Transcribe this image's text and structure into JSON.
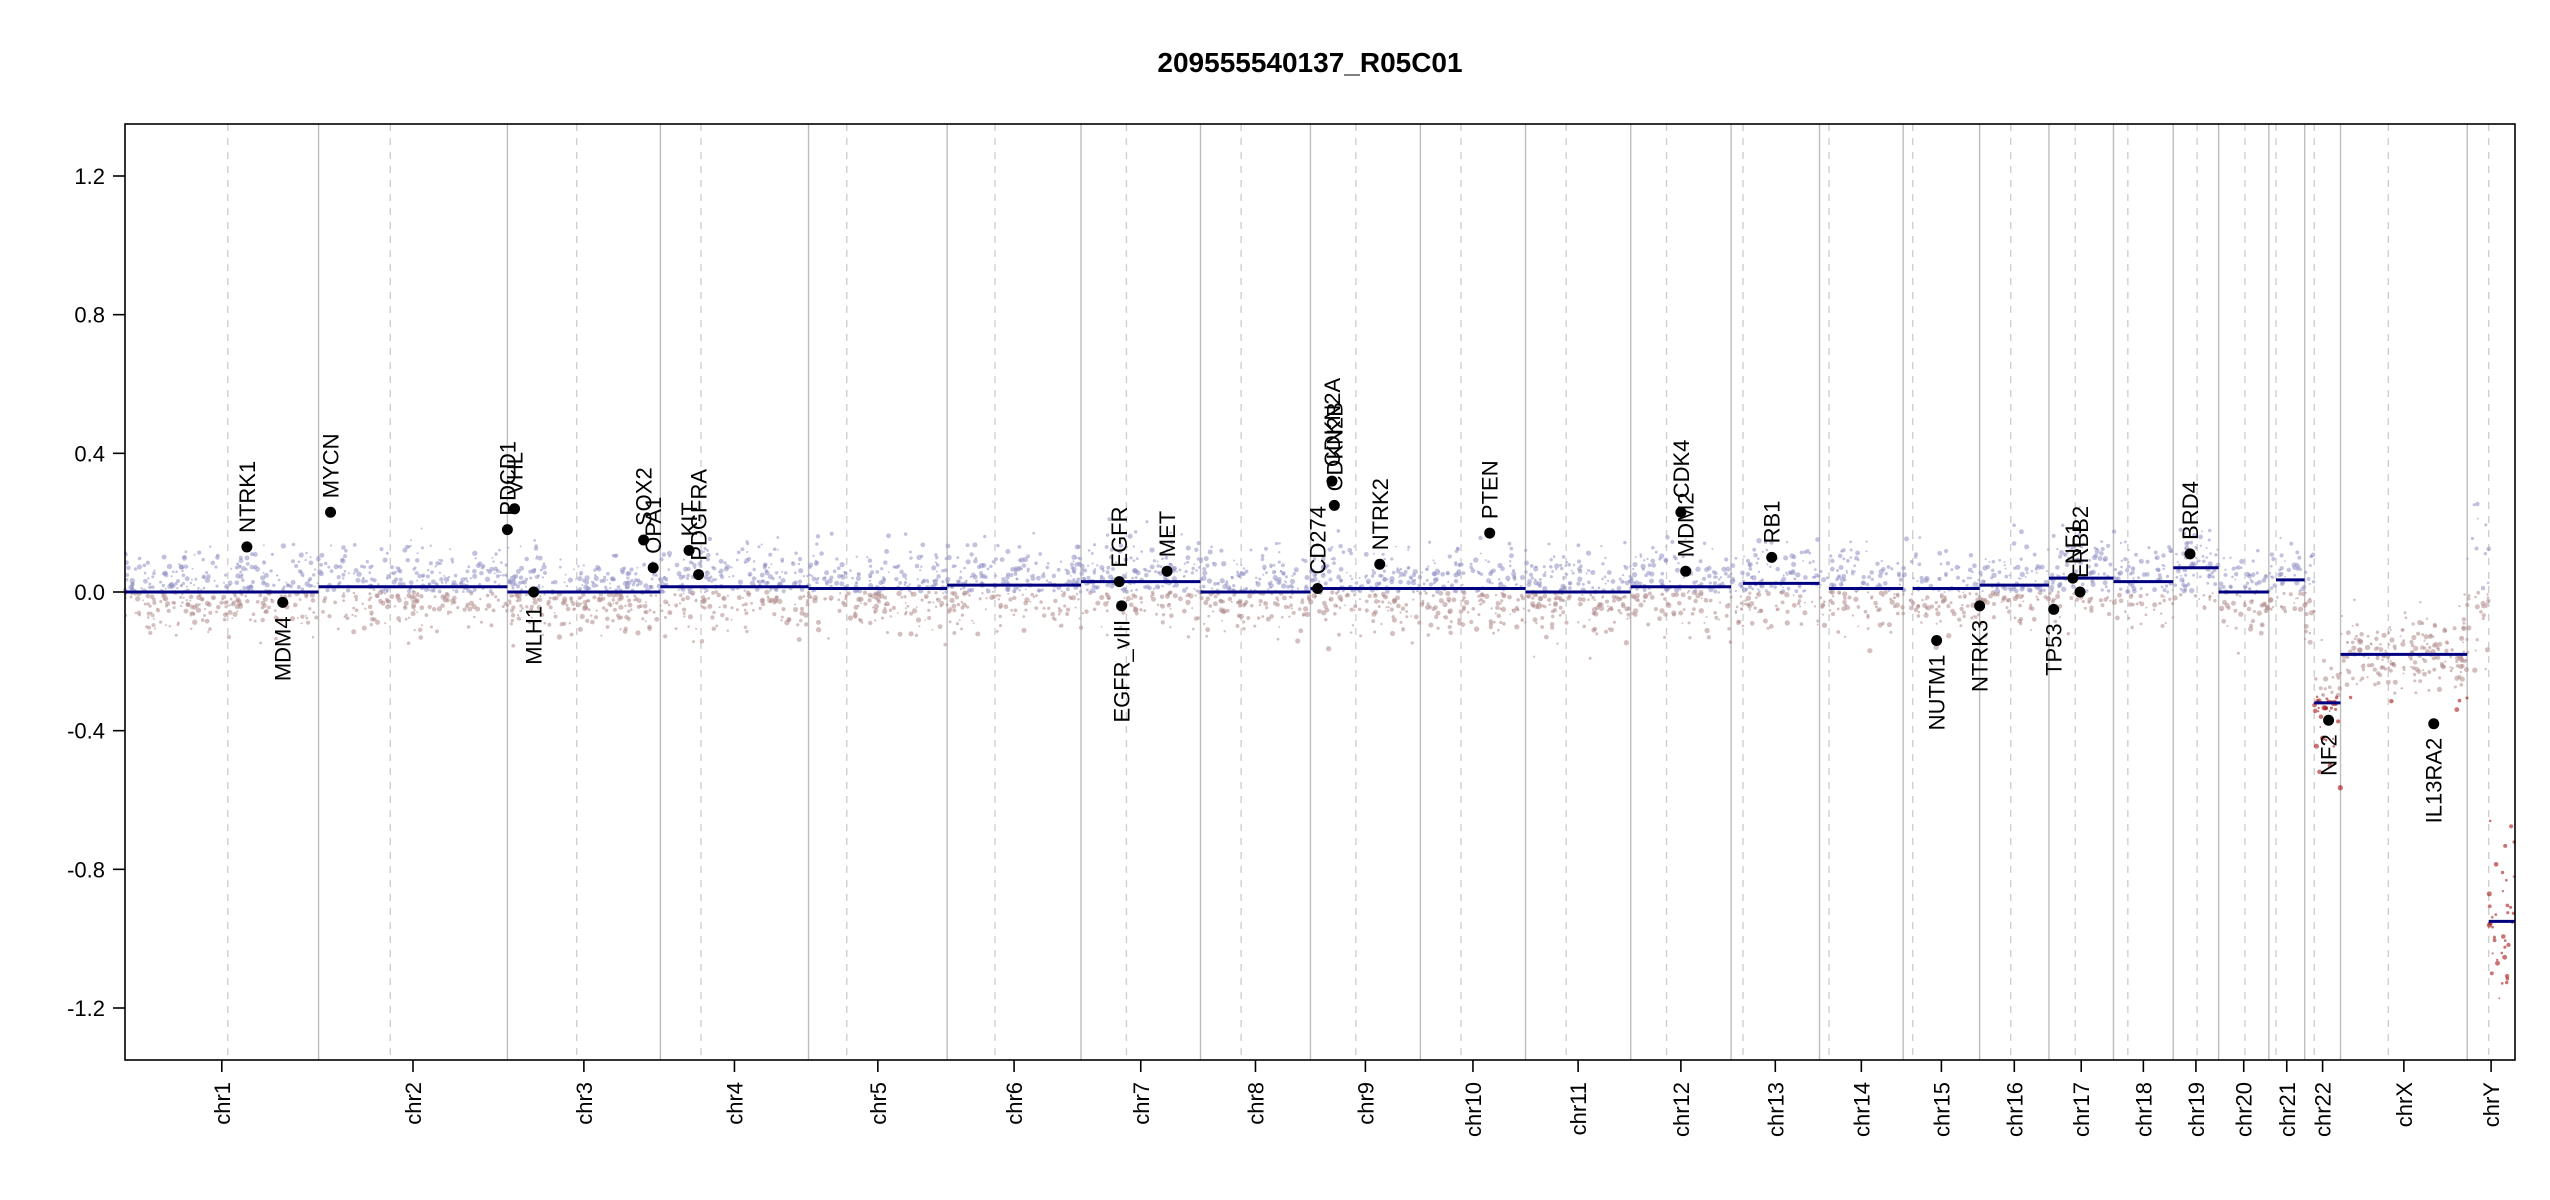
{
  "chart_data": {
    "type": "scatter",
    "title": "209555540137_R05C01",
    "xlabel": "",
    "ylabel": "",
    "ylim": [
      -1.35,
      1.35
    ],
    "y_ticks": [
      -1.2,
      -0.8,
      -0.4,
      0.0,
      0.4,
      0.8,
      1.2
    ],
    "y_tick_labels": [
      "-1.2",
      "-0.8",
      "-0.4",
      "0.0",
      "0.4",
      "0.8",
      "1.2"
    ],
    "grid": false,
    "legend": "none",
    "colors": {
      "segment": "#000080",
      "gain_points": "#8f8fc4",
      "loss_points": "#b08a8a",
      "strong_loss_points": "#9e0000",
      "gene_points": "#000000",
      "chrom_boundary": "#bdbdbd",
      "centromere": "#cfcfcf"
    },
    "chromosomes": [
      {
        "name": "chr1",
        "start": 0.0,
        "end": 0.081,
        "centromere": 0.043
      },
      {
        "name": "chr2",
        "start": 0.081,
        "end": 0.16,
        "centromere": 0.111
      },
      {
        "name": "chr3",
        "start": 0.16,
        "end": 0.224,
        "centromere": 0.189
      },
      {
        "name": "chr4",
        "start": 0.224,
        "end": 0.286,
        "centromere": 0.241
      },
      {
        "name": "chr5",
        "start": 0.286,
        "end": 0.344,
        "centromere": 0.302
      },
      {
        "name": "chr6",
        "start": 0.344,
        "end": 0.4,
        "centromere": 0.364
      },
      {
        "name": "chr7",
        "start": 0.4,
        "end": 0.45,
        "centromere": 0.419
      },
      {
        "name": "chr8",
        "start": 0.45,
        "end": 0.496,
        "centromere": 0.467
      },
      {
        "name": "chr9",
        "start": 0.496,
        "end": 0.542,
        "centromere": 0.515
      },
      {
        "name": "chr10",
        "start": 0.542,
        "end": 0.586,
        "centromere": 0.559
      },
      {
        "name": "chr11",
        "start": 0.586,
        "end": 0.63,
        "centromere": 0.603
      },
      {
        "name": "chr12",
        "start": 0.63,
        "end": 0.672,
        "centromere": 0.645
      },
      {
        "name": "chr13",
        "start": 0.672,
        "end": 0.709,
        "centromere": 0.677
      },
      {
        "name": "chr14",
        "start": 0.709,
        "end": 0.744,
        "centromere": 0.713
      },
      {
        "name": "chr15",
        "start": 0.744,
        "end": 0.776,
        "centromere": 0.748
      },
      {
        "name": "chr16",
        "start": 0.776,
        "end": 0.805,
        "centromere": 0.789
      },
      {
        "name": "chr17",
        "start": 0.805,
        "end": 0.832,
        "centromere": 0.816
      },
      {
        "name": "chr18",
        "start": 0.832,
        "end": 0.857,
        "centromere": 0.838
      },
      {
        "name": "chr19",
        "start": 0.857,
        "end": 0.876,
        "centromere": 0.867
      },
      {
        "name": "chr20",
        "start": 0.876,
        "end": 0.897,
        "centromere": 0.887
      },
      {
        "name": "chr21",
        "start": 0.897,
        "end": 0.912,
        "centromere": 0.9
      },
      {
        "name": "chr22",
        "start": 0.912,
        "end": 0.927,
        "centromere": 0.916
      },
      {
        "name": "chrX",
        "start": 0.927,
        "end": 0.98,
        "centromere": 0.947
      },
      {
        "name": "chrY",
        "start": 0.98,
        "end": 1.0,
        "centromere": 0.989
      }
    ],
    "segments": [
      {
        "x0": 0.0,
        "x1": 0.081,
        "y": 0.0
      },
      {
        "x0": 0.081,
        "x1": 0.16,
        "y": 0.015
      },
      {
        "x0": 0.16,
        "x1": 0.224,
        "y": 0.0
      },
      {
        "x0": 0.224,
        "x1": 0.286,
        "y": 0.015
      },
      {
        "x0": 0.286,
        "x1": 0.344,
        "y": 0.01
      },
      {
        "x0": 0.344,
        "x1": 0.4,
        "y": 0.02
      },
      {
        "x0": 0.4,
        "x1": 0.45,
        "y": 0.03
      },
      {
        "x0": 0.45,
        "x1": 0.496,
        "y": 0.0
      },
      {
        "x0": 0.496,
        "x1": 0.542,
        "y": 0.01
      },
      {
        "x0": 0.542,
        "x1": 0.586,
        "y": 0.01
      },
      {
        "x0": 0.586,
        "x1": 0.63,
        "y": 0.0
      },
      {
        "x0": 0.63,
        "x1": 0.672,
        "y": 0.015
      },
      {
        "x0": 0.677,
        "x1": 0.709,
        "y": 0.025
      },
      {
        "x0": 0.713,
        "x1": 0.744,
        "y": 0.01
      },
      {
        "x0": 0.748,
        "x1": 0.776,
        "y": 0.01
      },
      {
        "x0": 0.776,
        "x1": 0.805,
        "y": 0.02
      },
      {
        "x0": 0.805,
        "x1": 0.832,
        "y": 0.04
      },
      {
        "x0": 0.832,
        "x1": 0.857,
        "y": 0.03
      },
      {
        "x0": 0.857,
        "x1": 0.876,
        "y": 0.07
      },
      {
        "x0": 0.876,
        "x1": 0.897,
        "y": 0.0
      },
      {
        "x0": 0.9,
        "x1": 0.912,
        "y": 0.035
      },
      {
        "x0": 0.916,
        "x1": 0.927,
        "y": -0.32
      },
      {
        "x0": 0.927,
        "x1": 0.98,
        "y": -0.18
      },
      {
        "x0": 0.989,
        "x1": 1.0,
        "y": -0.95
      }
    ],
    "genes": [
      {
        "name": "NTRK1",
        "x": 0.051,
        "y": 0.13,
        "side": "above"
      },
      {
        "name": "MDM4",
        "x": 0.066,
        "y": -0.03,
        "side": "below"
      },
      {
        "name": "MYCN",
        "x": 0.086,
        "y": 0.23,
        "side": "above"
      },
      {
        "name": "PDCD1",
        "x": 0.16,
        "y": 0.18,
        "side": "above"
      },
      {
        "name": "VHL",
        "x": 0.163,
        "y": 0.24,
        "side": "above"
      },
      {
        "name": "MLH1",
        "x": 0.171,
        "y": 0.0,
        "side": "below"
      },
      {
        "name": "SOX2",
        "x": 0.217,
        "y": 0.15,
        "side": "above"
      },
      {
        "name": "OPA1",
        "x": 0.221,
        "y": 0.07,
        "side": "above"
      },
      {
        "name": "KIT",
        "x": 0.236,
        "y": 0.12,
        "side": "above"
      },
      {
        "name": "PDGFRA",
        "x": 0.24,
        "y": 0.05,
        "side": "above"
      },
      {
        "name": "EGFR",
        "x": 0.416,
        "y": 0.03,
        "side": "above"
      },
      {
        "name": "EGFR_vIII",
        "x": 0.417,
        "y": -0.04,
        "side": "below"
      },
      {
        "name": "MET",
        "x": 0.436,
        "y": 0.06,
        "side": "above"
      },
      {
        "name": "CD274",
        "x": 0.499,
        "y": 0.01,
        "side": "above"
      },
      {
        "name": "CDKN2A",
        "x": 0.505,
        "y": 0.32,
        "side": "above"
      },
      {
        "name": "CDKN2B",
        "x": 0.506,
        "y": 0.25,
        "side": "above"
      },
      {
        "name": "NTRK2",
        "x": 0.525,
        "y": 0.08,
        "side": "above"
      },
      {
        "name": "PTEN",
        "x": 0.571,
        "y": 0.17,
        "side": "above"
      },
      {
        "name": "CDK4",
        "x": 0.651,
        "y": 0.23,
        "side": "above"
      },
      {
        "name": "MDM2",
        "x": 0.653,
        "y": 0.06,
        "side": "above"
      },
      {
        "name": "RB1",
        "x": 0.689,
        "y": 0.1,
        "side": "above"
      },
      {
        "name": "NUTM1",
        "x": 0.758,
        "y": -0.14,
        "side": "below"
      },
      {
        "name": "NTRK3",
        "x": 0.776,
        "y": -0.04,
        "side": "below"
      },
      {
        "name": "TP53",
        "x": 0.807,
        "y": -0.05,
        "side": "below"
      },
      {
        "name": "NF1",
        "x": 0.815,
        "y": 0.04,
        "side": "above"
      },
      {
        "name": "ERBB2",
        "x": 0.818,
        "y": 0.0,
        "side": "above"
      },
      {
        "name": "BRD4",
        "x": 0.864,
        "y": 0.11,
        "side": "above"
      },
      {
        "name": "NF2",
        "x": 0.922,
        "y": -0.37,
        "side": "below"
      },
      {
        "name": "IL13RA2",
        "x": 0.966,
        "y": -0.38,
        "side": "below"
      }
    ]
  }
}
